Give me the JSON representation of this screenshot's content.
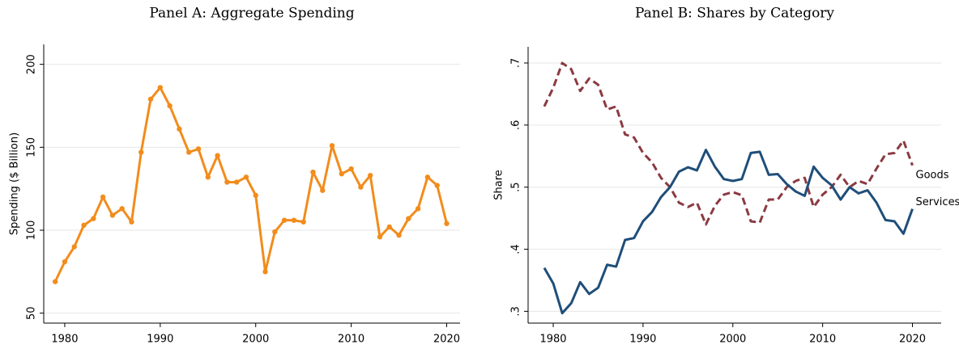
{
  "chart_data": [
    {
      "type": "line",
      "title": "Panel A: Aggregate Spending",
      "y_label": "Spending ($ Billion)",
      "x": [
        1979,
        1980,
        1981,
        1982,
        1983,
        1984,
        1985,
        1986,
        1987,
        1988,
        1989,
        1990,
        1991,
        1992,
        1993,
        1994,
        1995,
        1996,
        1997,
        1998,
        1999,
        2000,
        2001,
        2002,
        2003,
        2004,
        2005,
        2006,
        2007,
        2008,
        2009,
        2010,
        2011,
        2012,
        2013,
        2014,
        2015,
        2016,
        2017,
        2018,
        2019,
        2020
      ],
      "values": [
        69,
        81,
        90,
        103,
        107,
        120,
        109,
        113,
        105,
        147,
        179,
        186,
        175,
        161,
        147,
        149,
        132,
        145,
        129,
        129,
        132,
        121,
        75,
        99,
        106,
        106,
        105,
        135,
        124,
        151,
        134,
        137,
        126,
        133,
        96,
        102,
        97,
        107,
        113,
        132,
        127,
        104
      ],
      "color": "#f28c1c",
      "markers": true,
      "xlim": [
        1977.8,
        2021.4
      ],
      "xticks": [
        1980,
        1990,
        2000,
        2010,
        2020
      ],
      "ylim": [
        44,
        212
      ],
      "yticks": [
        50,
        100,
        150,
        200
      ],
      "grid": true
    },
    {
      "type": "line",
      "title": "Panel B: Shares by Category",
      "y_label": "Share",
      "x": [
        1979,
        1980,
        1981,
        1982,
        1983,
        1984,
        1985,
        1986,
        1987,
        1988,
        1989,
        1990,
        1991,
        1992,
        1993,
        1994,
        1995,
        1996,
        1997,
        1998,
        1999,
        2000,
        2001,
        2002,
        2003,
        2004,
        2005,
        2006,
        2007,
        2008,
        2009,
        2010,
        2011,
        2012,
        2013,
        2014,
        2015,
        2016,
        2017,
        2018,
        2019,
        2020
      ],
      "series": [
        {
          "name": "Goods",
          "color": "#8b3a42",
          "dashed": true,
          "values": [
            0.63,
            0.66,
            0.7,
            0.69,
            0.655,
            0.675,
            0.665,
            0.625,
            0.63,
            0.585,
            0.58,
            0.555,
            0.54,
            0.515,
            0.5,
            0.475,
            0.468,
            0.475,
            0.44,
            0.47,
            0.488,
            0.492,
            0.487,
            0.445,
            0.443,
            0.48,
            0.48,
            0.5,
            0.51,
            0.515,
            0.468,
            0.488,
            0.5,
            0.52,
            0.5,
            0.51,
            0.505,
            0.53,
            0.553,
            0.555,
            0.575,
            0.535
          ]
        },
        {
          "name": "Services",
          "color": "#1f4e79",
          "dashed": false,
          "values": [
            0.37,
            0.345,
            0.297,
            0.313,
            0.347,
            0.328,
            0.338,
            0.375,
            0.372,
            0.415,
            0.418,
            0.445,
            0.46,
            0.484,
            0.5,
            0.525,
            0.532,
            0.527,
            0.56,
            0.533,
            0.513,
            0.51,
            0.513,
            0.555,
            0.557,
            0.52,
            0.521,
            0.505,
            0.493,
            0.486,
            0.533,
            0.515,
            0.503,
            0.48,
            0.5,
            0.49,
            0.495,
            0.475,
            0.447,
            0.445,
            0.425,
            0.465
          ]
        }
      ],
      "xlim": [
        1977.2,
        2023.2
      ],
      "xticks": [
        1980,
        1990,
        2000,
        2010,
        2020
      ],
      "ylim": [
        0.281,
        0.726
      ],
      "yticks": [
        {
          "value": 0.3,
          "label": ".3"
        },
        {
          "value": 0.4,
          "label": ".4"
        },
        {
          "value": 0.5,
          "label": ".5"
        },
        {
          "value": 0.6,
          "label": ".6"
        },
        {
          "value": 0.7,
          "label": ".7"
        }
      ],
      "grid": true
    }
  ]
}
